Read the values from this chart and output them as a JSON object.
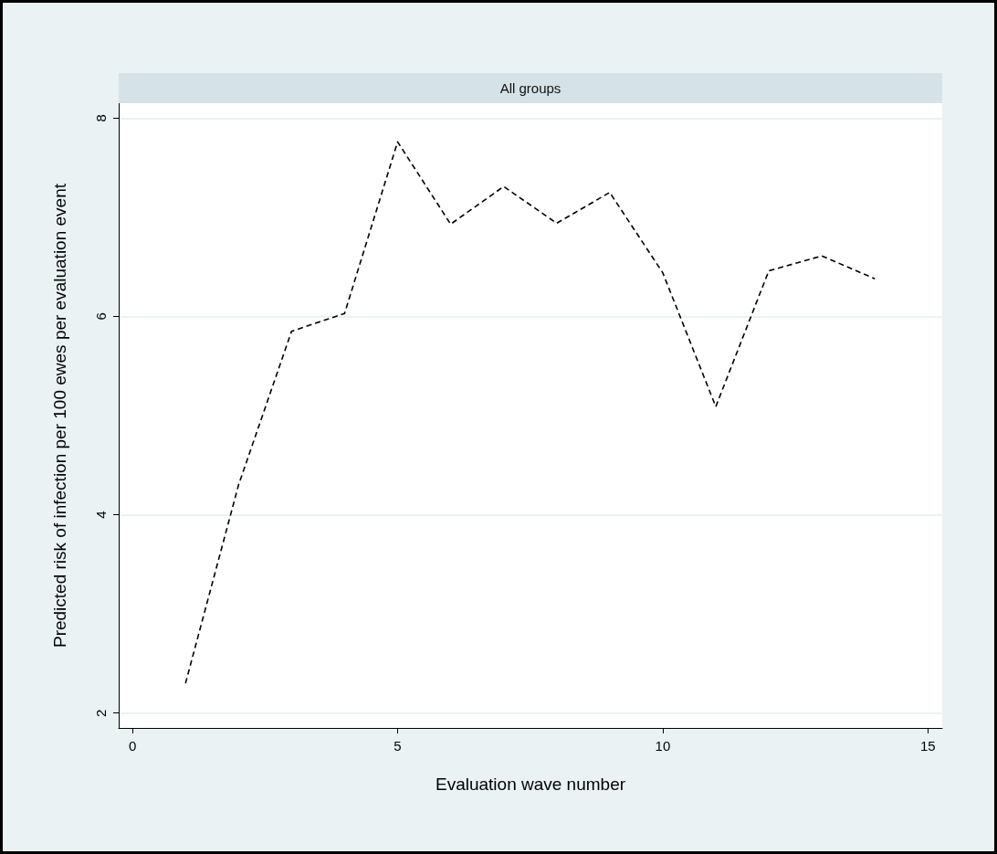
{
  "chart_data": {
    "type": "line",
    "title": "All groups",
    "xlabel": "Evaluation wave number",
    "ylabel": "Predicted risk of infection per 100 ewes per evaluation event",
    "x": [
      1,
      2,
      3,
      4,
      5,
      6,
      7,
      8,
      9,
      10,
      11,
      12,
      13,
      14
    ],
    "series": [
      {
        "color": "#000000",
        "values": [
          2.3,
          4.3,
          5.85,
          6.03,
          7.76,
          6.93,
          7.31,
          6.94,
          7.25,
          6.44,
          5.09,
          6.46,
          6.61,
          6.38
        ]
      }
    ],
    "xlim": [
      -0.26,
      15.27
    ],
    "xticks": [
      0,
      5,
      10,
      15
    ],
    "ylim": [
      1.85,
      8.15
    ],
    "yticks": [
      2,
      4,
      6,
      8
    ],
    "grid": "y",
    "marker": "none",
    "line_style": "dashed"
  }
}
